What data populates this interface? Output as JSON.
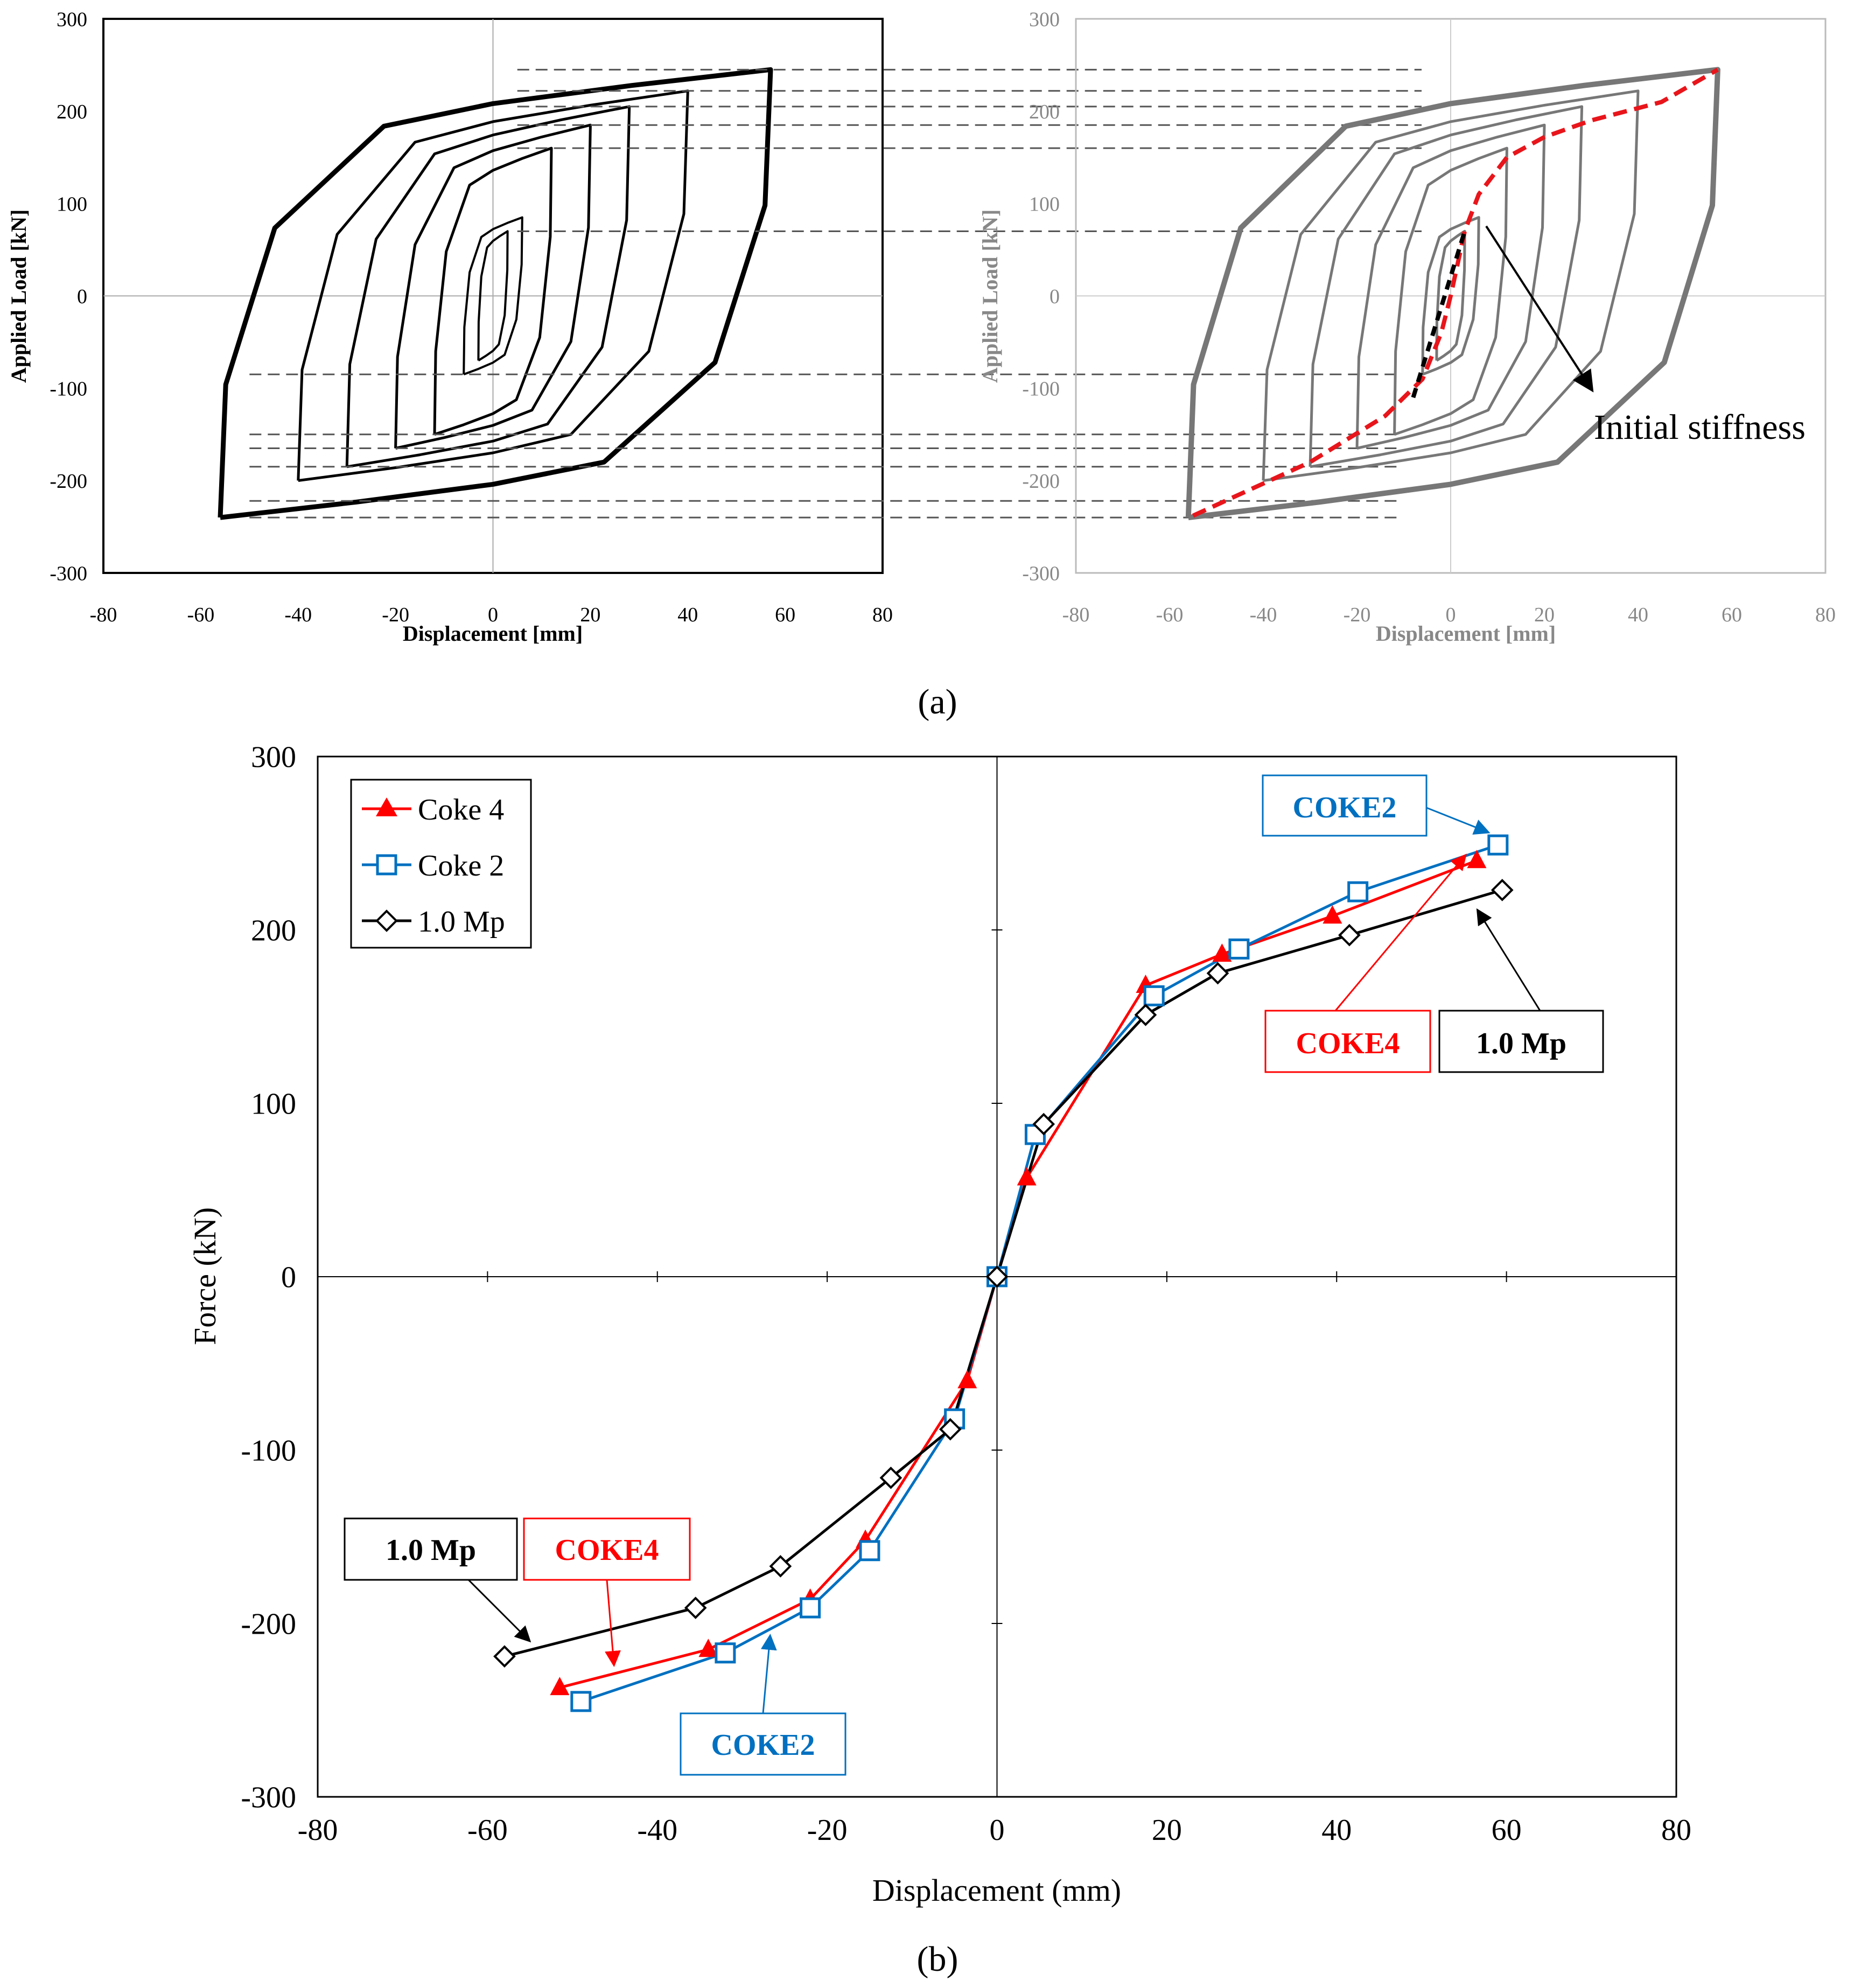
{
  "panel_a_caption": "(a)",
  "panel_b_caption": "(b)",
  "chart_data": [
    {
      "id": "a-left",
      "type": "line",
      "title": "",
      "xlabel": "Displacement [mm]",
      "ylabel": "Applied Load [kN]",
      "xlim": [
        -80,
        80
      ],
      "ylim": [
        -300,
        300
      ],
      "xticks": [
        -80,
        -60,
        -40,
        -20,
        0,
        20,
        40,
        60,
        80
      ],
      "yticks": [
        -300,
        -200,
        -100,
        0,
        100,
        200,
        300
      ],
      "color": "#000000",
      "description_loops_peak_pairs": [
        [
          3,
          70,
          -3,
          -70
        ],
        [
          6,
          85,
          -6,
          -85
        ],
        [
          12,
          160,
          -12,
          -150
        ],
        [
          20,
          185,
          -20,
          -165
        ],
        [
          28,
          205,
          -30,
          -185
        ],
        [
          40,
          222,
          -40,
          -200
        ],
        [
          57,
          245,
          -56,
          -240
        ]
      ]
    },
    {
      "id": "a-right",
      "type": "line",
      "title": "",
      "xlabel": "Displacement [mm]",
      "ylabel": "Applied Load [kN]",
      "xlim": [
        -80,
        80
      ],
      "ylim": [
        -300,
        300
      ],
      "xticks": [
        -80,
        -60,
        -40,
        -20,
        0,
        20,
        40,
        60,
        80
      ],
      "yticks": [
        -300,
        -200,
        -100,
        0,
        100,
        200,
        300
      ],
      "color": "#777777",
      "annotation": "Initial stiffness",
      "envelope": {
        "x": [
          -55,
          -30,
          -14,
          -6,
          -2,
          0,
          3,
          6,
          12,
          20,
          30,
          45,
          57
        ],
        "y": [
          -238,
          -180,
          -130,
          -90,
          -40,
          0,
          70,
          110,
          150,
          172,
          190,
          210,
          245
        ]
      },
      "initial_stiffness_x": [
        -8,
        3
      ],
      "initial_stiffness_y": [
        -110,
        70
      ]
    },
    {
      "id": "b",
      "type": "line",
      "title": "",
      "xlabel": "Displacement (mm)",
      "ylabel": "Force (kN)",
      "xlim": [
        -80,
        80
      ],
      "ylim": [
        -300,
        300
      ],
      "xticks": [
        -80,
        -60,
        -40,
        -20,
        0,
        20,
        40,
        60,
        80
      ],
      "yticks": [
        -300,
        -200,
        -100,
        0,
        100,
        200,
        300
      ],
      "legend_position": "top-left",
      "series": [
        {
          "name": "Coke 4",
          "color": "#ff0000",
          "marker": "triangle",
          "x": [
            -51.5,
            -34,
            -22,
            -15.5,
            -3.5,
            0,
            3.5,
            17.5,
            26.5,
            39.5,
            56.5
          ],
          "y": [
            -237,
            -215,
            -186,
            -152,
            -60,
            0,
            57,
            168,
            186,
            208,
            240
          ]
        },
        {
          "name": "Coke 2",
          "color": "#0070c0",
          "marker": "square",
          "x": [
            -49,
            -32,
            -22,
            -15,
            -5,
            0,
            4.5,
            18.5,
            28.5,
            42.5,
            59
          ],
          "y": [
            -245,
            -217,
            -191,
            -158,
            -82,
            0,
            82,
            162,
            189,
            222,
            249
          ]
        },
        {
          "name": "1.0 Mp",
          "color": "#000000",
          "marker": "diamond",
          "x": [
            -58,
            -35.5,
            -25.5,
            -12.5,
            -5.5,
            0,
            5.5,
            17.5,
            26,
            41.5,
            59.5
          ],
          "y": [
            -219,
            -191,
            -167,
            -116,
            -88,
            0,
            88,
            151,
            175,
            197,
            223
          ]
        }
      ],
      "annotations": [
        {
          "text": "COKE2",
          "color": "#0070c0"
        },
        {
          "text": "COKE4",
          "color": "#ff0000"
        },
        {
          "text": "1.0 Mp",
          "color": "#000000"
        },
        {
          "text": "1.0 Mp",
          "color": "#000000"
        },
        {
          "text": "COKE4",
          "color": "#ff0000"
        },
        {
          "text": "COKE2",
          "color": "#0070c0"
        }
      ]
    }
  ]
}
